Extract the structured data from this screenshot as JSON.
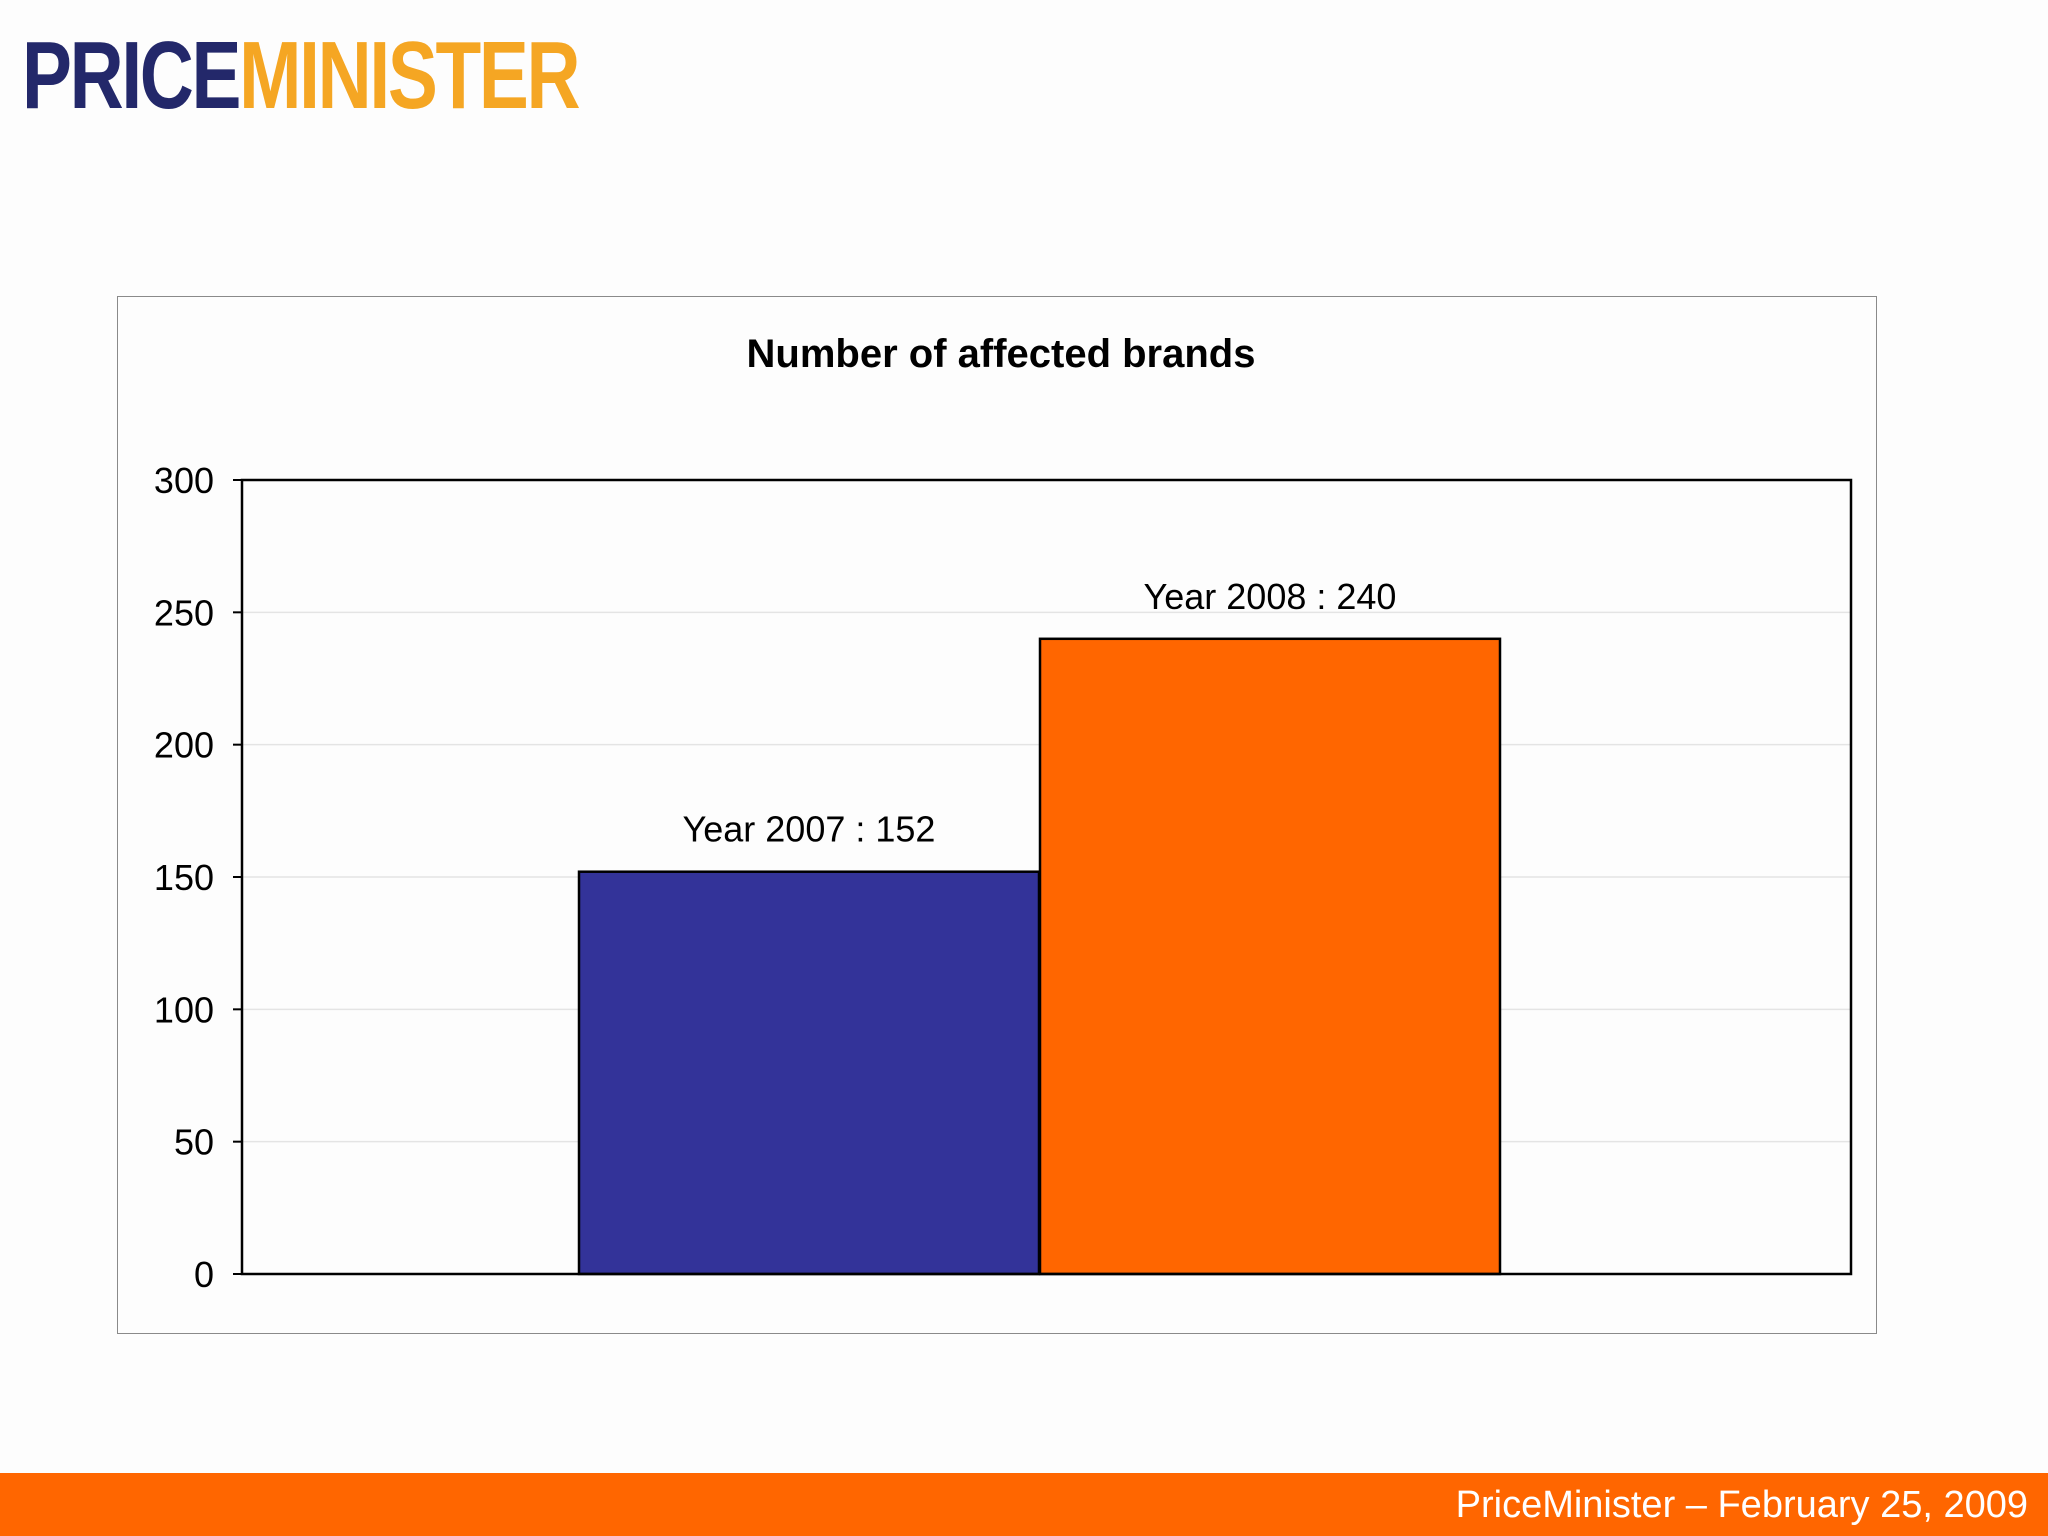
{
  "brand": {
    "logo_part1": "PRICE",
    "logo_part2": "MINISTER",
    "logo_color1": "#23286a",
    "logo_color2": "#f5a623"
  },
  "footer": {
    "text": "PriceMinister – February 25, 2009",
    "background": "#ff6600"
  },
  "chart_data": {
    "type": "bar",
    "title": "Number of affected brands",
    "xlabel": "",
    "ylabel": "",
    "ylim": [
      0,
      300
    ],
    "yticks": [
      0,
      50,
      100,
      150,
      200,
      250,
      300
    ],
    "grid": true,
    "legend": "none",
    "bars": [
      {
        "label": "Year 2007 : 152",
        "value": 152,
        "color": "#333399"
      },
      {
        "label": "Year 2008 : 240",
        "value": 240,
        "color": "#ff6600"
      }
    ]
  }
}
